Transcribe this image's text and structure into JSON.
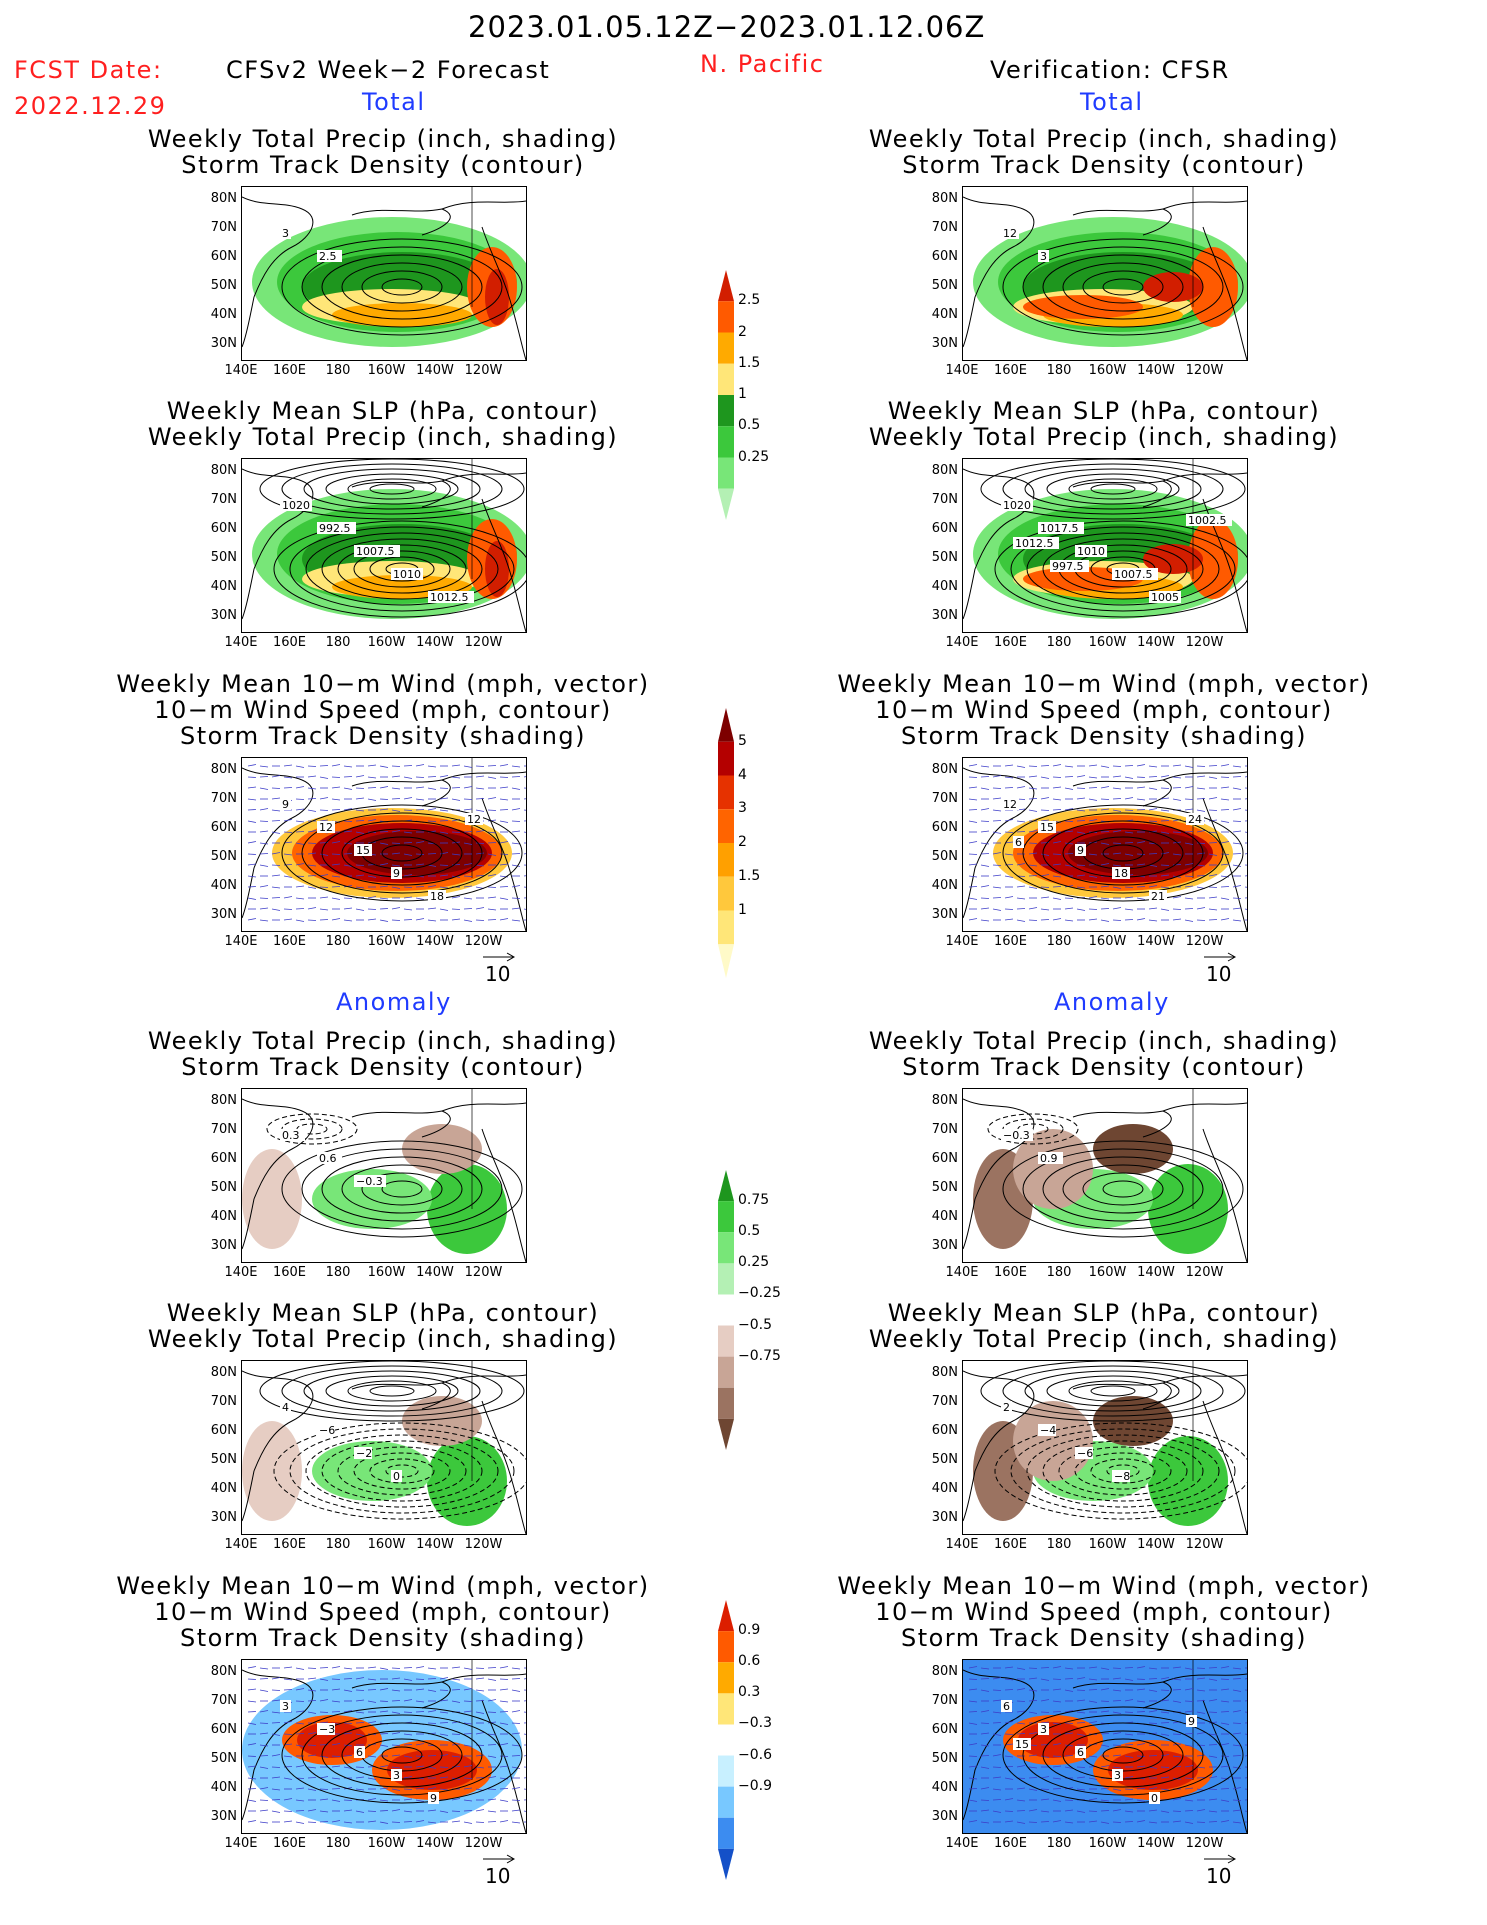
{
  "header": {
    "period": "2023.01.05.12Z−2023.01.12.06Z",
    "region": "N. Pacific",
    "fcst_label": "FCST Date:",
    "fcst_date": "2022.12.29",
    "forecast_title": "CFSv2 Week−2 Forecast",
    "verification_title": "Verification: CFSR",
    "total_label": "Total",
    "anomaly_label": "Anomaly"
  },
  "panel_titles": {
    "precip_storm": [
      "Weekly Total Precip (inch, shading)",
      "Storm Track Density (contour)"
    ],
    "slp_precip": [
      "Weekly Mean SLP (hPa, contour)",
      "Weekly Total Precip (inch, shading)"
    ],
    "wind_storm": [
      "Weekly Mean 10−m Wind (mph, vector)",
      "10−m Wind Speed (mph, contour)",
      "Storm Track Density (shading)"
    ]
  },
  "axes": {
    "lat_ticks": [
      "80N",
      "70N",
      "60N",
      "50N",
      "40N",
      "30N"
    ],
    "lon_ticks": [
      "140E",
      "160E",
      "180",
      "160W",
      "140W",
      "120W"
    ],
    "vector_ref": "10"
  },
  "chart_data": [
    {
      "type": "heatmap",
      "panel": "forecast-total-precip",
      "contour_labels": [
        "3",
        "2.5"
      ]
    },
    {
      "type": "heatmap",
      "panel": "verification-total-precip",
      "contour_labels": [
        "12",
        "3"
      ]
    },
    {
      "type": "heatmap",
      "panel": "forecast-total-slp",
      "contour_labels": [
        "1020",
        "992.5",
        "1007.5",
        "1010",
        "1012.5"
      ]
    },
    {
      "type": "heatmap",
      "panel": "verification-total-slp",
      "contour_labels": [
        "1020",
        "1017.5",
        "1010",
        "1007.5",
        "1005",
        "1002.5",
        "1012.5",
        "997.5"
      ]
    },
    {
      "type": "heatmap",
      "panel": "forecast-total-wind",
      "contour_labels": [
        "9",
        "12",
        "15",
        "9",
        "18",
        "12"
      ]
    },
    {
      "type": "heatmap",
      "panel": "verification-total-wind",
      "contour_labels": [
        "12",
        "15",
        "9",
        "18",
        "21",
        "24",
        "6"
      ]
    },
    {
      "type": "heatmap",
      "panel": "forecast-anom-precip",
      "contour_labels": [
        "0.3",
        "0.6",
        "−0.3"
      ]
    },
    {
      "type": "heatmap",
      "panel": "verification-anom-precip",
      "contour_labels": [
        "−0.3",
        "0.9"
      ]
    },
    {
      "type": "heatmap",
      "panel": "forecast-anom-slp",
      "contour_labels": [
        "4",
        "−6",
        "−2",
        "0"
      ]
    },
    {
      "type": "heatmap",
      "panel": "verification-anom-slp",
      "contour_labels": [
        "2",
        "−4",
        "−6",
        "−8"
      ]
    },
    {
      "type": "heatmap",
      "panel": "forecast-anom-wind",
      "contour_labels": [
        "3",
        "−3",
        "6",
        "3",
        "9"
      ]
    },
    {
      "type": "heatmap",
      "panel": "verification-anom-wind",
      "contour_labels": [
        "6",
        "3",
        "6",
        "3",
        "0",
        "9",
        "15"
      ]
    }
  ],
  "colorbars": {
    "precip_total": {
      "levels": [
        "0.25",
        "0.5",
        "1",
        "1.5",
        "2",
        "2.5"
      ],
      "colors": [
        "#b4f0b4",
        "#78e678",
        "#3cc83c",
        "#1e961e",
        "#ffe678",
        "#ffaa00",
        "#ff5a00",
        "#d21e00"
      ]
    },
    "storm_total": {
      "levels": [
        "1",
        "1.5",
        "2",
        "3",
        "4",
        "5"
      ],
      "colors": [
        "#fffac8",
        "#ffe678",
        "#ffc83c",
        "#ffa000",
        "#ff6400",
        "#e63200",
        "#b40000",
        "#7d0000"
      ]
    },
    "precip_anom": {
      "levels": [
        "−0.75",
        "−0.5",
        "−0.25",
        "0.25",
        "0.5",
        "0.75"
      ],
      "colors": [
        "#6e4632",
        "#9b7361",
        "#c8a596",
        "#e6cdc3",
        "#ffffff",
        "#b4f0b4",
        "#78e678",
        "#3cc83c",
        "#1e961e"
      ]
    },
    "storm_anom": {
      "levels": [
        "−0.9",
        "−0.6",
        "−0.3",
        "0.3",
        "0.6",
        "0.9"
      ],
      "colors": [
        "#1450c8",
        "#3c8cf0",
        "#78c8ff",
        "#c8f0ff",
        "#ffffff",
        "#ffe678",
        "#ffaa00",
        "#ff5a00",
        "#dc1e00"
      ]
    }
  },
  "colors": {
    "red": "#ff1f1f",
    "blue": "#1f3bff",
    "land": "#000000",
    "vector": "#3c3cc8"
  }
}
